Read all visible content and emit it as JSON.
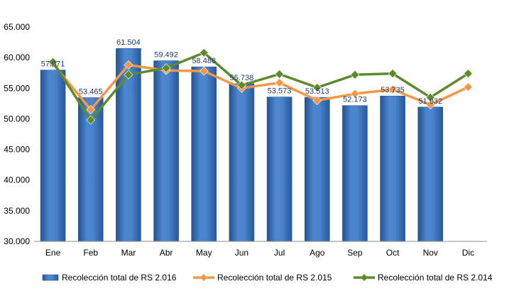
{
  "chart_data": {
    "type": "bar",
    "categories": [
      "Ene",
      "Feb",
      "Mar",
      "Abr",
      "May",
      "Jun",
      "Jul",
      "Ago",
      "Sep",
      "Oct",
      "Nov",
      "Dic"
    ],
    "ylim": [
      30000,
      65000
    ],
    "yticks": [
      30000,
      35000,
      40000,
      45000,
      50000,
      55000,
      60000,
      65000
    ],
    "ytick_labels": [
      "30.000",
      "35.000",
      "40.000",
      "45.000",
      "50.000",
      "55.000",
      "60.000",
      "65.000"
    ],
    "grid": false,
    "legend_position": "bottom",
    "series": [
      {
        "name": "Recolección total de RS 2.016",
        "type": "bar",
        "color": "#3A75C4",
        "values": [
          57971,
          53465,
          61504,
          59492,
          58488,
          55738,
          53573,
          53513,
          52173,
          53735,
          51932,
          null
        ],
        "labels": [
          "57.971",
          "53.465",
          "61.504",
          "59.492",
          "58.488",
          "55.738",
          "53.573",
          "53.513",
          "52.173",
          "53.735",
          "51.932",
          ""
        ]
      },
      {
        "name": "Recolección total de RS 2.015",
        "type": "line",
        "color": "#F79646",
        "values": [
          59000,
          51500,
          58800,
          57900,
          57800,
          55000,
          55900,
          53000,
          54100,
          54800,
          52300,
          55200
        ]
      },
      {
        "name": "Recolección total de RS 2.014",
        "type": "line",
        "color": "#5E8A2E",
        "values": [
          59300,
          49800,
          57200,
          58300,
          60800,
          55500,
          57300,
          55100,
          57200,
          57400,
          53500,
          57400
        ]
      }
    ]
  }
}
